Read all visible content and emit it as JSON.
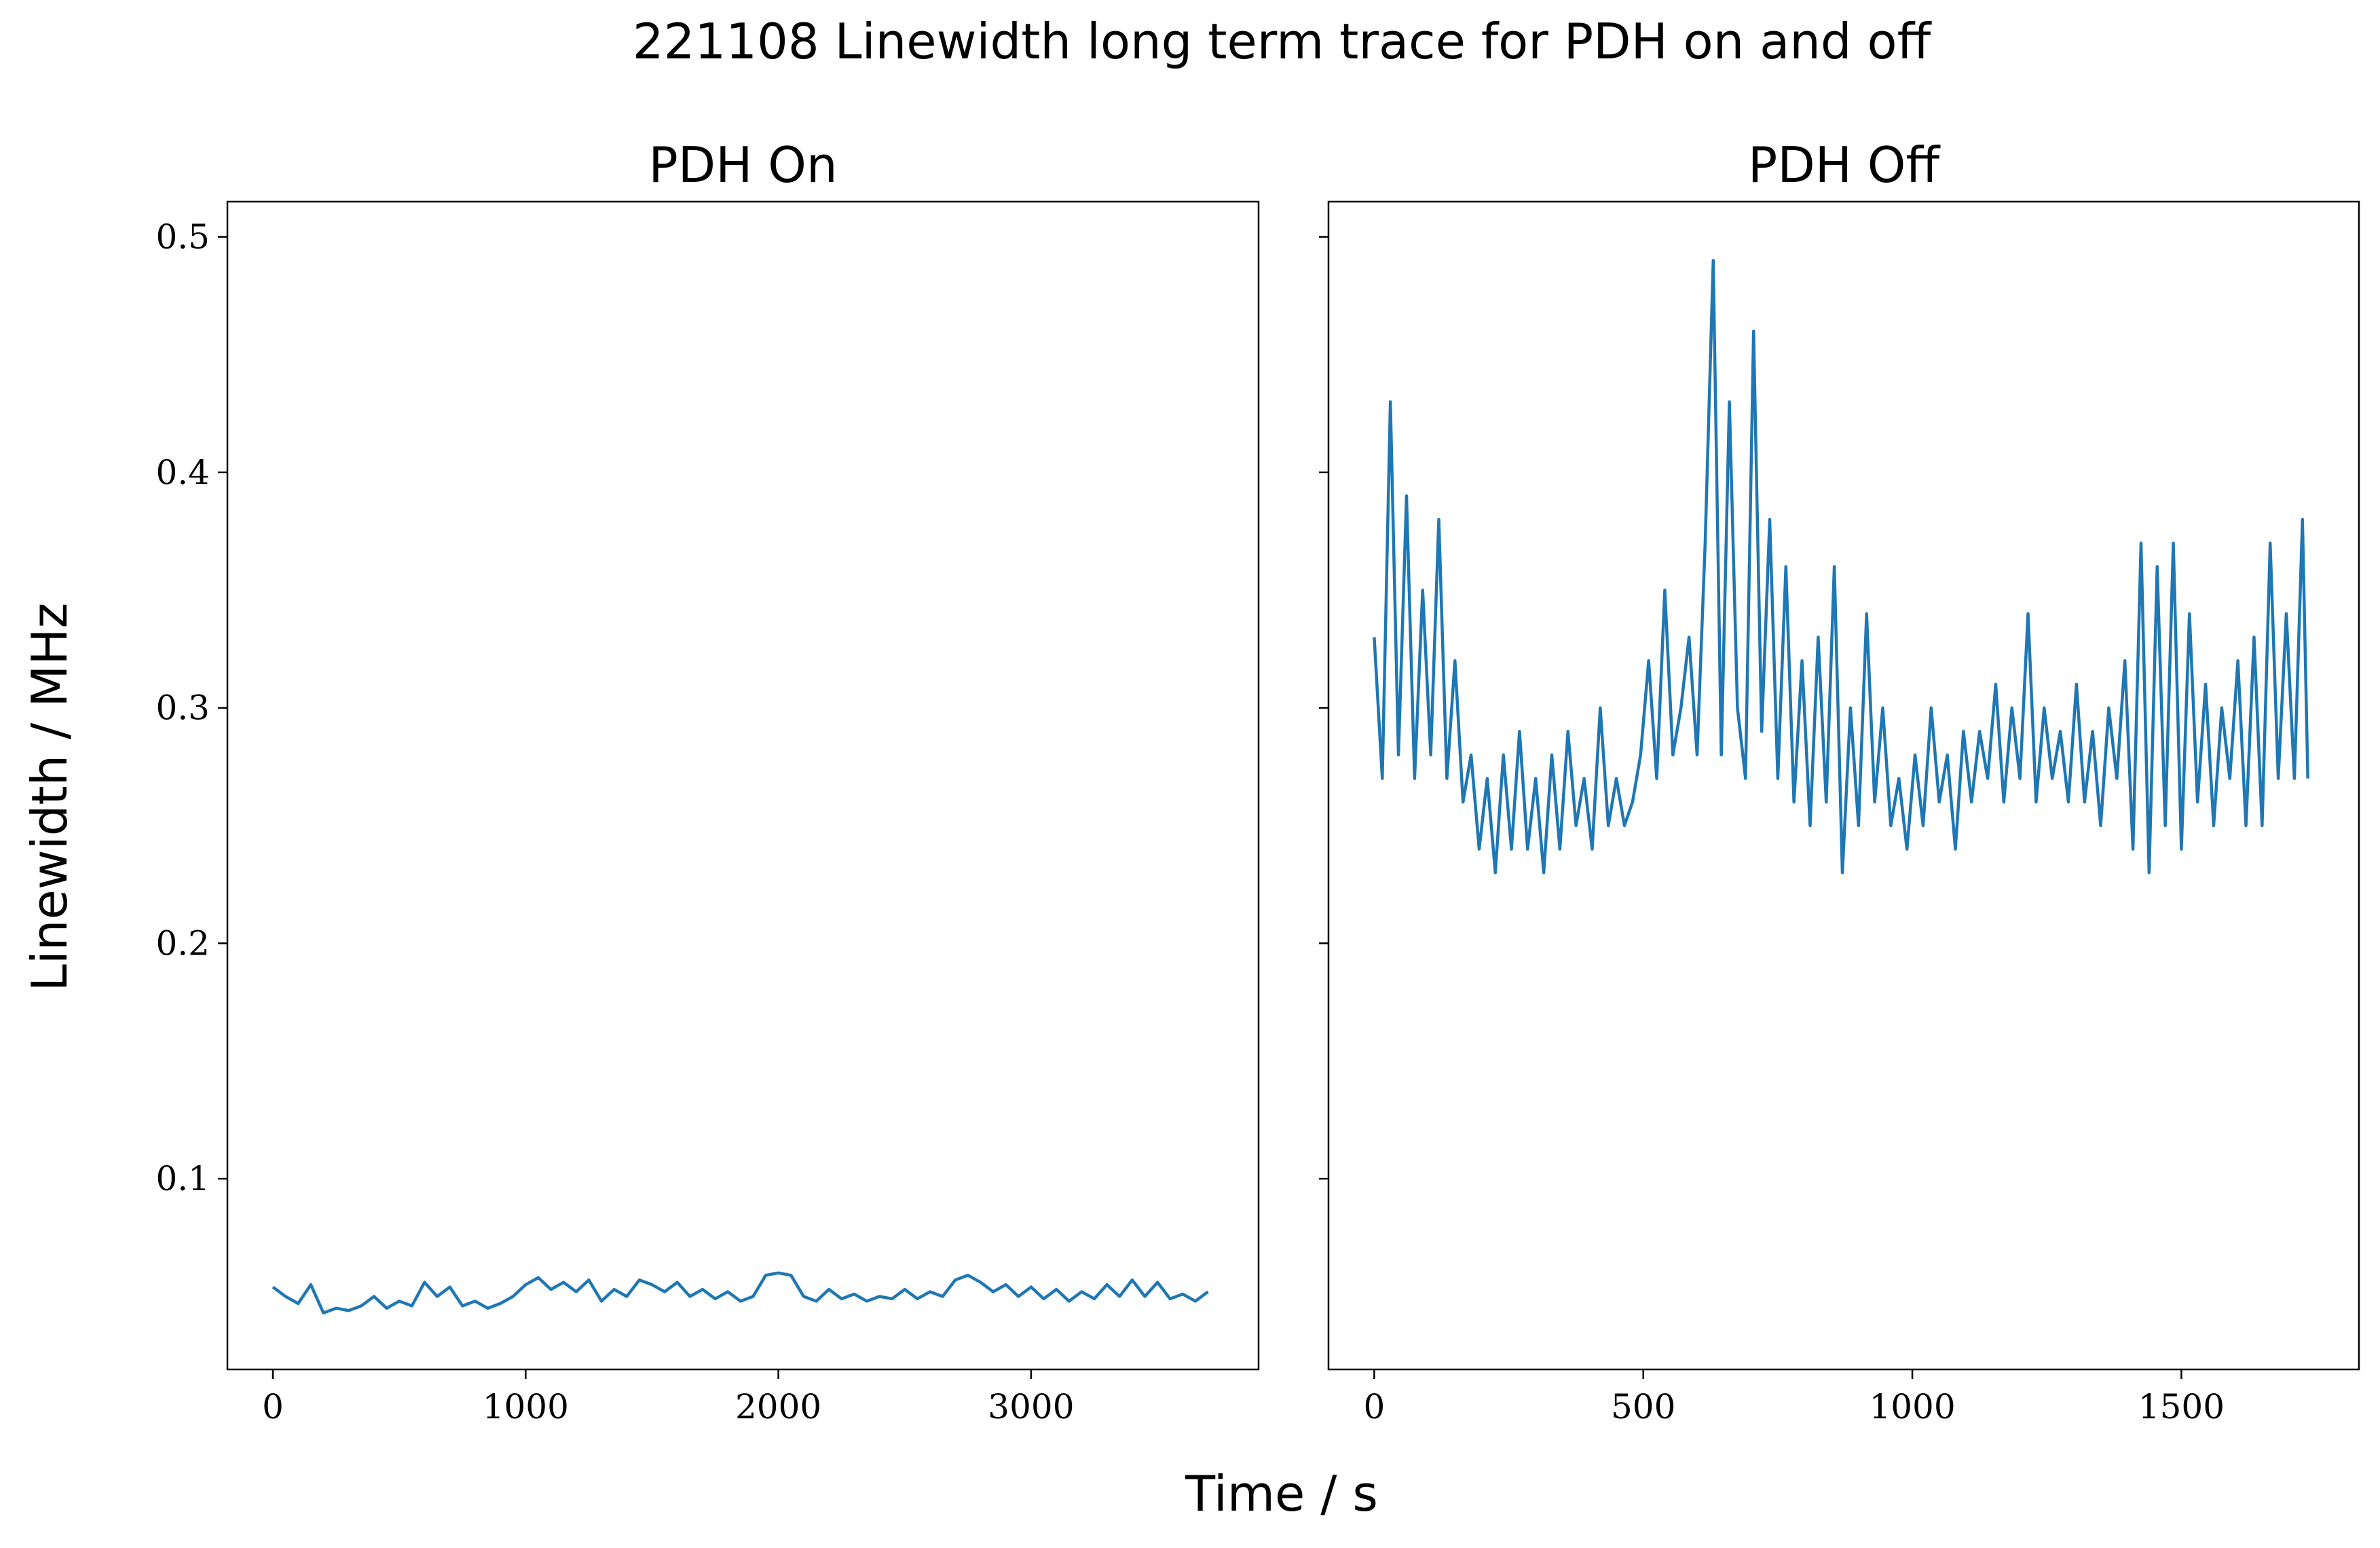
{
  "title": "221108 Linewidth long term trace for PDH on and off",
  "xlabel": "Time / s",
  "ylabel": "Linewidth / MHz",
  "chart_data": [
    {
      "type": "line",
      "title": "PDH On",
      "xlim": [
        -180,
        3900
      ],
      "xticks": [
        0,
        1000,
        2000,
        3000
      ],
      "ylim": [
        0.019,
        0.515
      ],
      "yticks": [
        0.1,
        0.2,
        0.3,
        0.4,
        0.5
      ],
      "x": [
        0,
        50,
        100,
        150,
        200,
        250,
        300,
        350,
        400,
        450,
        500,
        550,
        600,
        650,
        700,
        750,
        800,
        850,
        900,
        950,
        1000,
        1050,
        1100,
        1150,
        1200,
        1250,
        1300,
        1350,
        1400,
        1450,
        1500,
        1550,
        1600,
        1650,
        1700,
        1750,
        1800,
        1850,
        1900,
        1950,
        2000,
        2050,
        2100,
        2150,
        2200,
        2250,
        2300,
        2350,
        2400,
        2450,
        2500,
        2550,
        2600,
        2650,
        2700,
        2750,
        2800,
        2850,
        2900,
        2950,
        3000,
        3050,
        3100,
        3150,
        3200,
        3250,
        3300,
        3350,
        3400,
        3450,
        3500,
        3550,
        3600,
        3650,
        3700
      ],
      "series": [
        {
          "color": "#1f77b4",
          "values": [
            0.054,
            0.05,
            0.047,
            0.055,
            0.043,
            0.045,
            0.044,
            0.046,
            0.05,
            0.045,
            0.048,
            0.046,
            0.056,
            0.05,
            0.054,
            0.046,
            0.048,
            0.045,
            0.047,
            0.05,
            0.055,
            0.058,
            0.053,
            0.056,
            0.052,
            0.057,
            0.048,
            0.053,
            0.05,
            0.057,
            0.055,
            0.052,
            0.056,
            0.05,
            0.053,
            0.049,
            0.052,
            0.048,
            0.05,
            0.059,
            0.06,
            0.059,
            0.05,
            0.048,
            0.053,
            0.049,
            0.051,
            0.048,
            0.05,
            0.049,
            0.053,
            0.049,
            0.052,
            0.05,
            0.057,
            0.059,
            0.056,
            0.052,
            0.055,
            0.05,
            0.054,
            0.049,
            0.053,
            0.048,
            0.052,
            0.049,
            0.055,
            0.05,
            0.057,
            0.05,
            0.056,
            0.049,
            0.051,
            0.048,
            0.052
          ]
        }
      ]
    },
    {
      "type": "line",
      "title": "PDH Off",
      "xlim": [
        -85,
        1830
      ],
      "xticks": [
        0,
        500,
        1000,
        1500
      ],
      "ylim": [
        0.019,
        0.515
      ],
      "yticks": [
        0.1,
        0.2,
        0.3,
        0.4,
        0.5
      ],
      "x": [
        0,
        15,
        30,
        45,
        60,
        75,
        90,
        105,
        120,
        135,
        150,
        165,
        180,
        195,
        210,
        225,
        240,
        255,
        270,
        285,
        300,
        315,
        330,
        345,
        360,
        375,
        390,
        405,
        420,
        435,
        450,
        465,
        480,
        495,
        510,
        525,
        540,
        555,
        570,
        585,
        600,
        615,
        630,
        645,
        660,
        675,
        690,
        705,
        720,
        735,
        750,
        765,
        780,
        795,
        810,
        825,
        840,
        855,
        870,
        885,
        900,
        915,
        930,
        945,
        960,
        975,
        990,
        1005,
        1020,
        1035,
        1050,
        1065,
        1080,
        1095,
        1110,
        1125,
        1140,
        1155,
        1170,
        1185,
        1200,
        1215,
        1230,
        1245,
        1260,
        1275,
        1290,
        1305,
        1320,
        1335,
        1350,
        1365,
        1380,
        1395,
        1410,
        1425,
        1440,
        1455,
        1470,
        1485,
        1500,
        1515,
        1530,
        1545,
        1560,
        1575,
        1590,
        1605,
        1620,
        1635,
        1650,
        1665,
        1680,
        1695,
        1710,
        1725,
        1735
      ],
      "series": [
        {
          "color": "#1f77b4",
          "values": [
            0.33,
            0.27,
            0.43,
            0.28,
            0.39,
            0.27,
            0.35,
            0.28,
            0.38,
            0.27,
            0.32,
            0.26,
            0.28,
            0.24,
            0.27,
            0.23,
            0.28,
            0.24,
            0.29,
            0.24,
            0.27,
            0.23,
            0.28,
            0.24,
            0.29,
            0.25,
            0.27,
            0.24,
            0.3,
            0.25,
            0.27,
            0.25,
            0.26,
            0.28,
            0.32,
            0.27,
            0.35,
            0.28,
            0.3,
            0.33,
            0.28,
            0.37,
            0.49,
            0.28,
            0.43,
            0.3,
            0.27,
            0.46,
            0.29,
            0.38,
            0.27,
            0.36,
            0.26,
            0.32,
            0.25,
            0.33,
            0.26,
            0.36,
            0.23,
            0.3,
            0.25,
            0.34,
            0.26,
            0.3,
            0.25,
            0.27,
            0.24,
            0.28,
            0.25,
            0.3,
            0.26,
            0.28,
            0.24,
            0.29,
            0.26,
            0.29,
            0.27,
            0.31,
            0.26,
            0.3,
            0.27,
            0.34,
            0.26,
            0.3,
            0.27,
            0.29,
            0.26,
            0.31,
            0.26,
            0.29,
            0.25,
            0.3,
            0.27,
            0.32,
            0.24,
            0.37,
            0.23,
            0.36,
            0.25,
            0.37,
            0.24,
            0.34,
            0.26,
            0.31,
            0.25,
            0.3,
            0.27,
            0.32,
            0.25,
            0.33,
            0.25,
            0.37,
            0.27,
            0.34,
            0.27,
            0.38,
            0.27
          ]
        }
      ]
    }
  ]
}
